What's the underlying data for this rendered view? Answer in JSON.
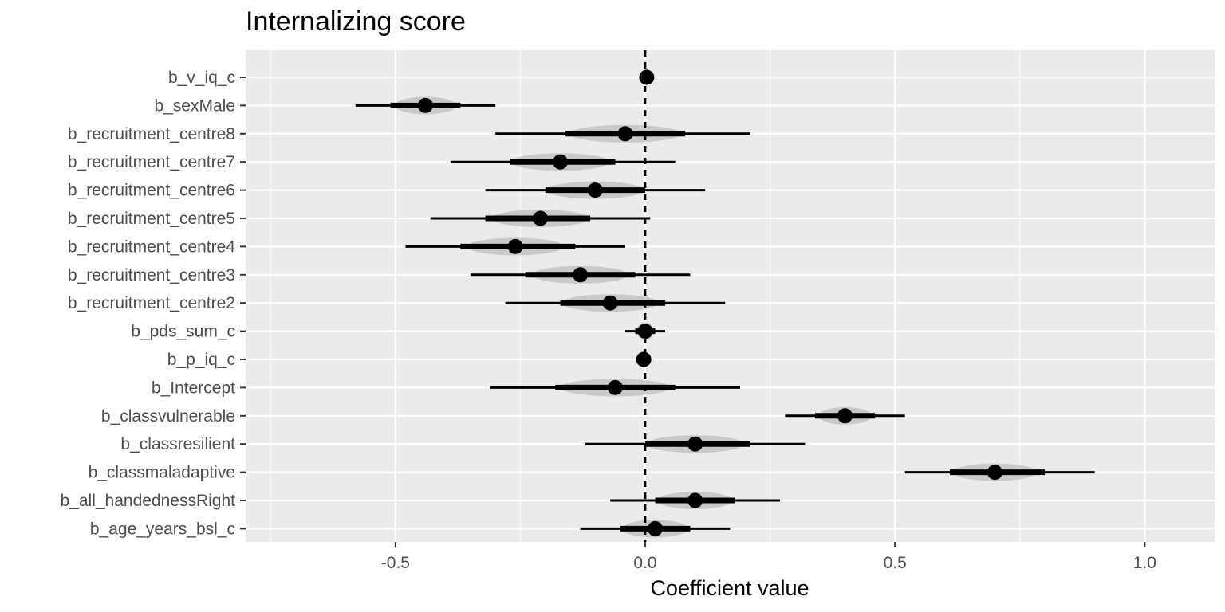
{
  "chart_data": {
    "type": "scatter",
    "title": "Internalizing score",
    "xlabel": "Coefficient value",
    "ylabel": "",
    "xlim": [
      -0.8,
      1.14
    ],
    "x_ticks": [
      {
        "value": -0.5,
        "label": "-0.5"
      },
      {
        "value": 0.0,
        "label": "0.0"
      },
      {
        "value": 0.5,
        "label": "0.5"
      },
      {
        "value": 1.0,
        "label": "1.0"
      }
    ],
    "x_minor_ticks": [
      -0.75,
      -0.25,
      0.25,
      0.75
    ],
    "reference_line": 0.0,
    "grid": true,
    "legend": "none",
    "categories": [
      "b_v_iq_c",
      "b_sexMale",
      "b_recruitment_centre8",
      "b_recruitment_centre7",
      "b_recruitment_centre6",
      "b_recruitment_centre5",
      "b_recruitment_centre4",
      "b_recruitment_centre3",
      "b_recruitment_centre2",
      "b_pds_sum_c",
      "b_p_iq_c",
      "b_Intercept",
      "b_classvulnerable",
      "b_classresilient",
      "b_classmaladaptive",
      "b_all_handednessRight",
      "b_age_years_bsl_c"
    ],
    "points": [
      {
        "label": "b_v_iq_c",
        "estimate": 0.003,
        "inner": [
          0.0,
          0.006
        ],
        "outer": [
          -0.003,
          0.009
        ]
      },
      {
        "label": "b_sexMale",
        "estimate": -0.44,
        "inner": [
          -0.51,
          -0.37
        ],
        "outer": [
          -0.58,
          -0.3
        ]
      },
      {
        "label": "b_recruitment_centre8",
        "estimate": -0.04,
        "inner": [
          -0.16,
          0.08
        ],
        "outer": [
          -0.3,
          0.21
        ]
      },
      {
        "label": "b_recruitment_centre7",
        "estimate": -0.17,
        "inner": [
          -0.27,
          -0.06
        ],
        "outer": [
          -0.39,
          0.06
        ]
      },
      {
        "label": "b_recruitment_centre6",
        "estimate": -0.1,
        "inner": [
          -0.2,
          0.0
        ],
        "outer": [
          -0.32,
          0.12
        ]
      },
      {
        "label": "b_recruitment_centre5",
        "estimate": -0.21,
        "inner": [
          -0.32,
          -0.11
        ],
        "outer": [
          -0.43,
          0.01
        ]
      },
      {
        "label": "b_recruitment_centre4",
        "estimate": -0.26,
        "inner": [
          -0.37,
          -0.14
        ],
        "outer": [
          -0.48,
          -0.04
        ]
      },
      {
        "label": "b_recruitment_centre3",
        "estimate": -0.13,
        "inner": [
          -0.24,
          -0.02
        ],
        "outer": [
          -0.35,
          0.09
        ]
      },
      {
        "label": "b_recruitment_centre2",
        "estimate": -0.07,
        "inner": [
          -0.17,
          0.04
        ],
        "outer": [
          -0.28,
          0.16
        ]
      },
      {
        "label": "b_pds_sum_c",
        "estimate": 0.0,
        "inner": [
          -0.02,
          0.02
        ],
        "outer": [
          -0.04,
          0.04
        ]
      },
      {
        "label": "b_p_iq_c",
        "estimate": -0.003,
        "inner": [
          -0.006,
          0.0
        ],
        "outer": [
          -0.009,
          0.003
        ]
      },
      {
        "label": "b_Intercept",
        "estimate": -0.06,
        "inner": [
          -0.18,
          0.06
        ],
        "outer": [
          -0.31,
          0.19
        ]
      },
      {
        "label": "b_classvulnerable",
        "estimate": 0.4,
        "inner": [
          0.34,
          0.46
        ],
        "outer": [
          0.28,
          0.52
        ]
      },
      {
        "label": "b_classresilient",
        "estimate": 0.1,
        "inner": [
          0.0,
          0.21
        ],
        "outer": [
          -0.12,
          0.32
        ]
      },
      {
        "label": "b_classmaladaptive",
        "estimate": 0.7,
        "inner": [
          0.61,
          0.8
        ],
        "outer": [
          0.52,
          0.9
        ]
      },
      {
        "label": "b_all_handednessRight",
        "estimate": 0.1,
        "inner": [
          0.02,
          0.18
        ],
        "outer": [
          -0.07,
          0.27
        ]
      },
      {
        "label": "b_age_years_bsl_c",
        "estimate": 0.02,
        "inner": [
          -0.05,
          0.09
        ],
        "outer": [
          -0.13,
          0.17
        ]
      }
    ],
    "colors": {
      "panel": "#EBEBEB",
      "grid": "#FFFFFF",
      "text": "#4D4D4D",
      "title": "#000000",
      "marks": "#000000",
      "reference": "#000000",
      "density": "#BDBDBD"
    }
  }
}
